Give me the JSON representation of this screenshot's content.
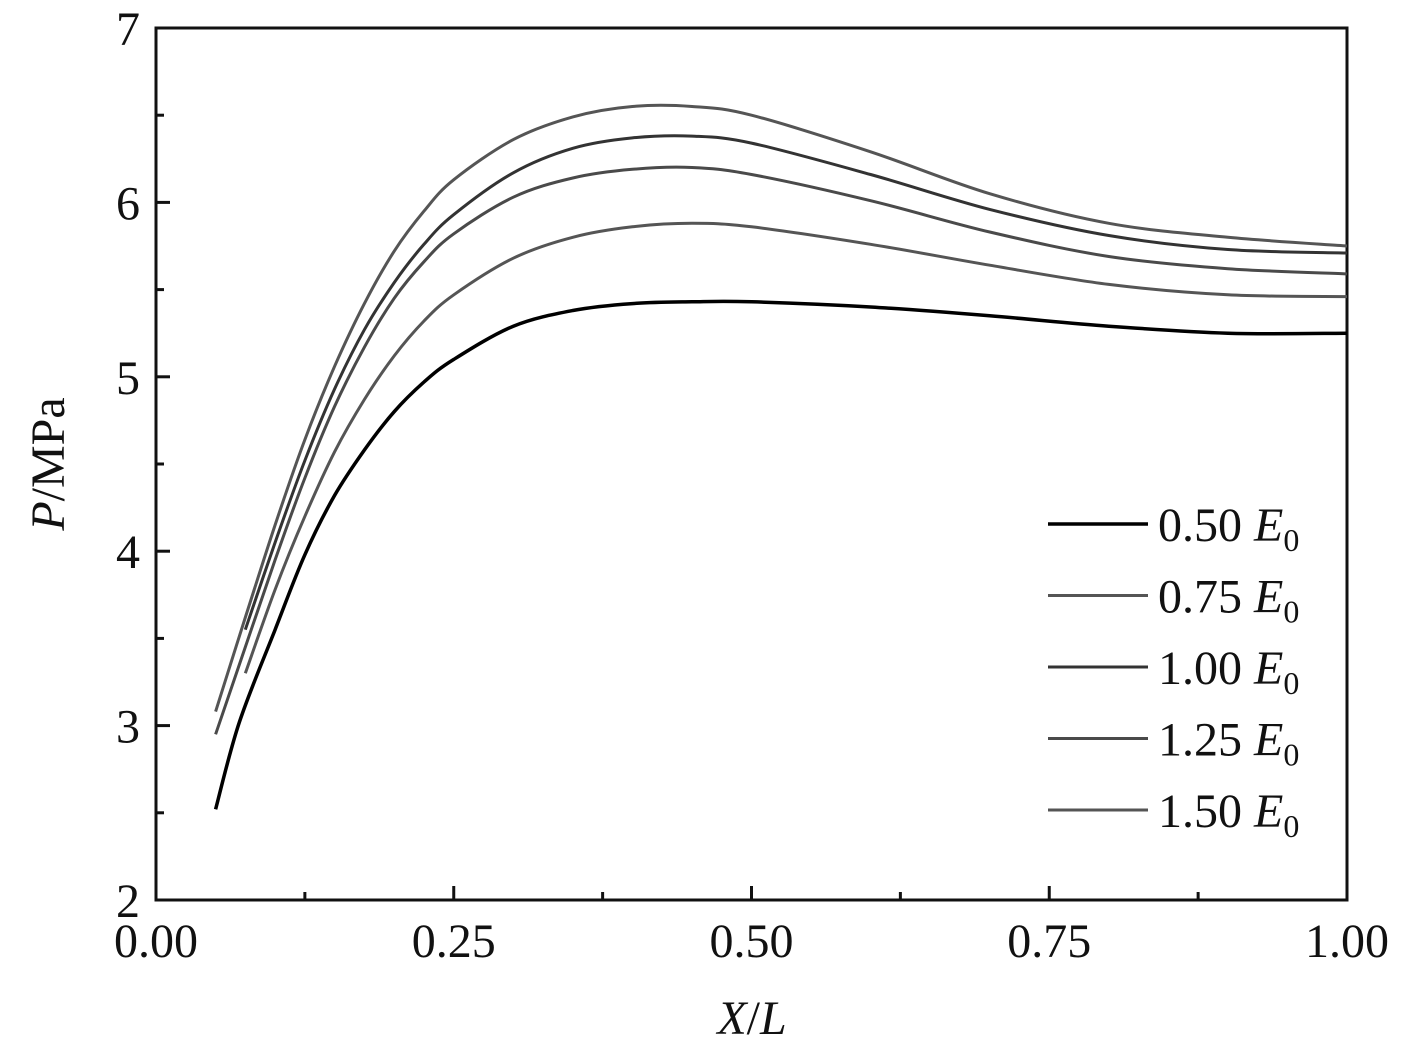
{
  "chart_data": {
    "type": "line",
    "xlabel": {
      "var": "X",
      "sep": "/",
      "den": "L"
    },
    "ylabel": {
      "var": "P",
      "unit": "/MPa"
    },
    "xlim": [
      0,
      1
    ],
    "ylim": [
      2,
      7
    ],
    "x_ticks": [
      "0.00",
      "0.25",
      "0.50",
      "0.75",
      "1.00"
    ],
    "x_tick_values": [
      0,
      0.25,
      0.5,
      0.75,
      1.0
    ],
    "y_ticks": [
      "2",
      "3",
      "4",
      "5",
      "6",
      "7"
    ],
    "y_tick_values": [
      2,
      3,
      4,
      5,
      6,
      7
    ],
    "grid": false,
    "legend_position": "bottom-right",
    "series": [
      {
        "name": "0.50 E0",
        "label_prefix": "0.50 ",
        "label_var": "E",
        "label_sub": "0",
        "color": "#000000",
        "points": [
          [
            0.05,
            2.52
          ],
          [
            0.07,
            3.02
          ],
          [
            0.1,
            3.55
          ],
          [
            0.125,
            3.98
          ],
          [
            0.15,
            4.32
          ],
          [
            0.175,
            4.58
          ],
          [
            0.2,
            4.8
          ],
          [
            0.225,
            4.97
          ],
          [
            0.25,
            5.1
          ],
          [
            0.3,
            5.29
          ],
          [
            0.35,
            5.38
          ],
          [
            0.4,
            5.42
          ],
          [
            0.45,
            5.43
          ],
          [
            0.5,
            5.43
          ],
          [
            0.6,
            5.4
          ],
          [
            0.7,
            5.35
          ],
          [
            0.8,
            5.29
          ],
          [
            0.9,
            5.25
          ],
          [
            1.0,
            5.25
          ]
        ]
      },
      {
        "name": "0.75 E0",
        "label_prefix": "0.75 ",
        "label_var": "E",
        "label_sub": "0",
        "color": "#555555",
        "points": [
          [
            0.075,
            3.3
          ],
          [
            0.1,
            3.78
          ],
          [
            0.125,
            4.2
          ],
          [
            0.15,
            4.57
          ],
          [
            0.175,
            4.87
          ],
          [
            0.2,
            5.12
          ],
          [
            0.225,
            5.32
          ],
          [
            0.25,
            5.47
          ],
          [
            0.3,
            5.68
          ],
          [
            0.35,
            5.8
          ],
          [
            0.4,
            5.86
          ],
          [
            0.45,
            5.88
          ],
          [
            0.5,
            5.86
          ],
          [
            0.6,
            5.76
          ],
          [
            0.7,
            5.64
          ],
          [
            0.8,
            5.53
          ],
          [
            0.9,
            5.47
          ],
          [
            1.0,
            5.46
          ]
        ]
      },
      {
        "name": "1.00 E0",
        "label_prefix": "1.00 ",
        "label_var": "E",
        "label_sub": "0",
        "color": "#333333",
        "points": [
          [
            0.075,
            3.55
          ],
          [
            0.1,
            4.05
          ],
          [
            0.125,
            4.52
          ],
          [
            0.15,
            4.93
          ],
          [
            0.175,
            5.27
          ],
          [
            0.2,
            5.54
          ],
          [
            0.225,
            5.76
          ],
          [
            0.25,
            5.93
          ],
          [
            0.3,
            6.17
          ],
          [
            0.35,
            6.31
          ],
          [
            0.4,
            6.37
          ],
          [
            0.45,
            6.38
          ],
          [
            0.5,
            6.34
          ],
          [
            0.6,
            6.16
          ],
          [
            0.7,
            5.96
          ],
          [
            0.8,
            5.81
          ],
          [
            0.9,
            5.73
          ],
          [
            1.0,
            5.71
          ]
        ]
      },
      {
        "name": "1.25 E0",
        "label_prefix": "1.25 ",
        "label_var": "E",
        "label_sub": "0",
        "color": "#4a4a4a",
        "points": [
          [
            0.05,
            2.95
          ],
          [
            0.075,
            3.45
          ],
          [
            0.1,
            3.95
          ],
          [
            0.125,
            4.42
          ],
          [
            0.15,
            4.83
          ],
          [
            0.175,
            5.17
          ],
          [
            0.2,
            5.45
          ],
          [
            0.225,
            5.66
          ],
          [
            0.25,
            5.82
          ],
          [
            0.3,
            6.03
          ],
          [
            0.35,
            6.14
          ],
          [
            0.4,
            6.19
          ],
          [
            0.45,
            6.2
          ],
          [
            0.5,
            6.16
          ],
          [
            0.6,
            6.01
          ],
          [
            0.7,
            5.83
          ],
          [
            0.8,
            5.69
          ],
          [
            0.9,
            5.62
          ],
          [
            1.0,
            5.59
          ]
        ]
      },
      {
        "name": "1.50 E0",
        "label_prefix": "1.50 ",
        "label_var": "E",
        "label_sub": "0",
        "color": "#555555",
        "points": [
          [
            0.05,
            3.08
          ],
          [
            0.075,
            3.62
          ],
          [
            0.1,
            4.15
          ],
          [
            0.125,
            4.64
          ],
          [
            0.15,
            5.06
          ],
          [
            0.175,
            5.42
          ],
          [
            0.2,
            5.72
          ],
          [
            0.225,
            5.95
          ],
          [
            0.25,
            6.13
          ],
          [
            0.3,
            6.36
          ],
          [
            0.35,
            6.49
          ],
          [
            0.4,
            6.55
          ],
          [
            0.45,
            6.55
          ],
          [
            0.5,
            6.5
          ],
          [
            0.6,
            6.29
          ],
          [
            0.7,
            6.05
          ],
          [
            0.8,
            5.88
          ],
          [
            0.9,
            5.8
          ],
          [
            1.0,
            5.75
          ]
        ]
      }
    ]
  }
}
